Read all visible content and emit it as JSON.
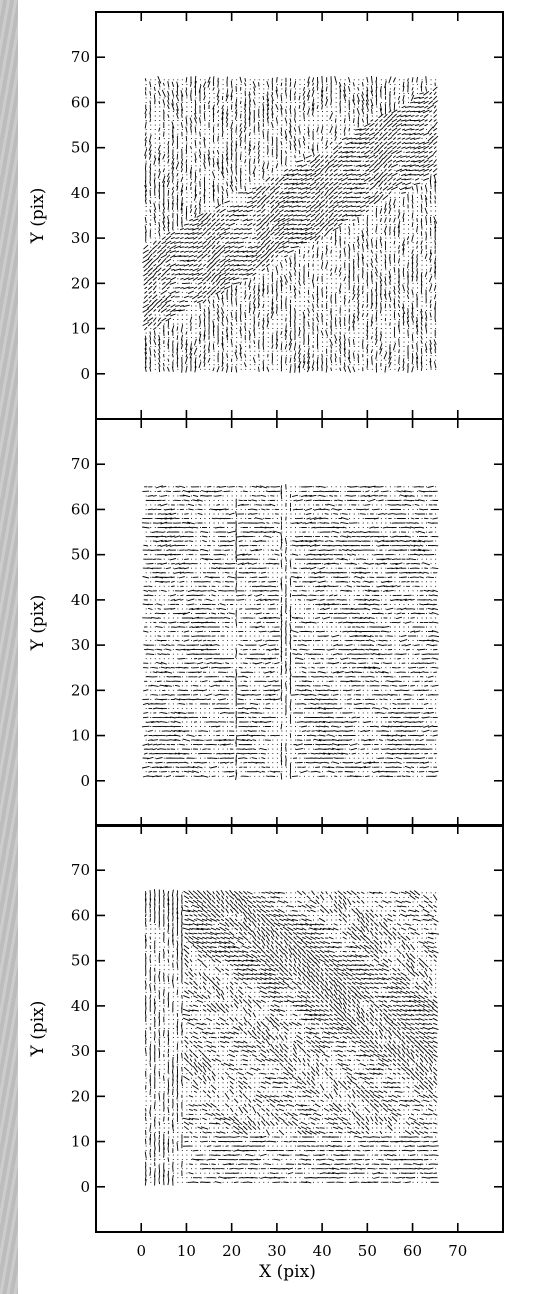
{
  "chart_data": [
    {
      "type": "quiver",
      "panel": "top",
      "xlabel": "",
      "ylabel": "Y (pix)",
      "xlim": [
        -10,
        80
      ],
      "ylim": [
        -10,
        80
      ],
      "xticks": [],
      "yticks": [
        "0",
        "10",
        "20",
        "30",
        "40",
        "50",
        "60",
        "70"
      ],
      "grid_extent": {
        "x": [
          1,
          65
        ],
        "y": [
          1,
          65
        ]
      },
      "dominant_orientation": "vertical, with a dense diagonal band rising toward upper right",
      "grid": false
    },
    {
      "type": "quiver",
      "panel": "middle",
      "xlabel": "",
      "ylabel": "Y (pix)",
      "xlim": [
        -10,
        80
      ],
      "ylim": [
        -10,
        80
      ],
      "xticks": [],
      "yticks": [
        "0",
        "10",
        "20",
        "30",
        "40",
        "50",
        "60",
        "70"
      ],
      "grid_extent": {
        "x": [
          1,
          65
        ],
        "y": [
          1,
          65
        ]
      },
      "dominant_orientation": "horizontal",
      "grid": false
    },
    {
      "type": "quiver",
      "panel": "bottom",
      "xlabel": "X (pix)",
      "ylabel": "Y (pix)",
      "xlim": [
        -10,
        80
      ],
      "ylim": [
        -10,
        80
      ],
      "xticks": [
        "0",
        "10",
        "20",
        "30",
        "40",
        "50",
        "60",
        "70"
      ],
      "yticks": [
        "0",
        "10",
        "20",
        "30",
        "40",
        "50",
        "60",
        "70"
      ],
      "grid_extent": {
        "x": [
          1,
          65
        ],
        "y": [
          1,
          65
        ]
      },
      "dominant_orientation": "mixed, with a dense diagonal band descending toward lower right",
      "grid": false
    }
  ]
}
